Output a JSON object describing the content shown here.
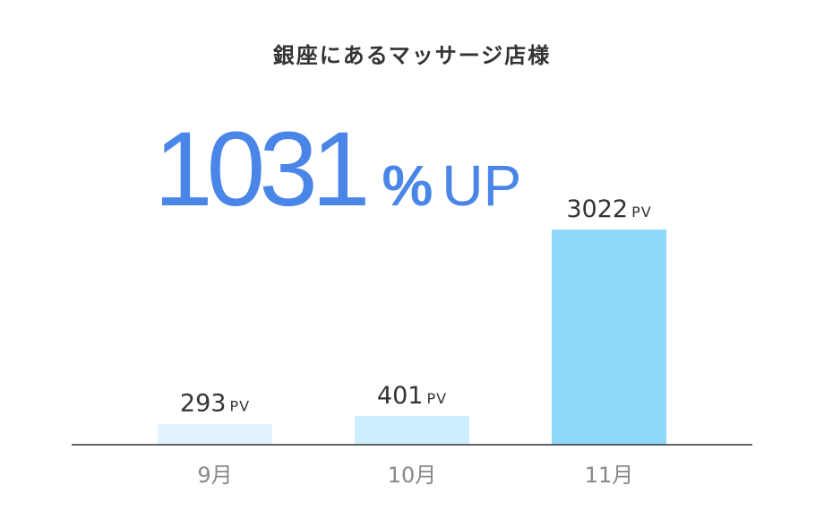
{
  "title": "銀座にあるマッサージ店様",
  "headline": {
    "value": "1031",
    "percent_sign": "%",
    "suffix": "UP",
    "color": "#4a86e8"
  },
  "chart_data": {
    "type": "bar",
    "categories": [
      "9月",
      "10月",
      "11月"
    ],
    "values": [
      293,
      401,
      3022
    ],
    "value_labels": [
      "293",
      "401",
      "3022"
    ],
    "unit": "PV",
    "colors": [
      "#e1f4fd",
      "#cdeefc",
      "#8ed8f9"
    ],
    "axis_color": "#333333",
    "category_label_color": "#888888",
    "value_label_color": "#333333",
    "ylim": [
      0,
      3022
    ]
  }
}
